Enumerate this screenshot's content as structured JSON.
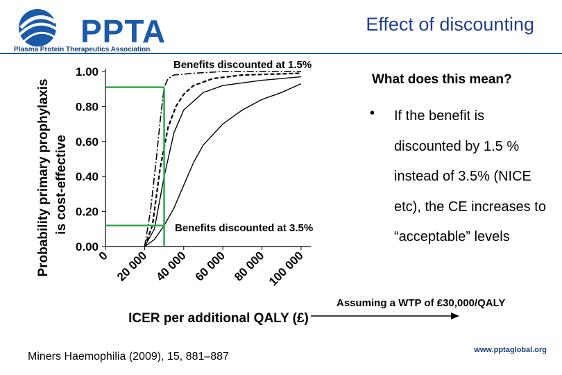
{
  "header": {
    "logo_text": "PPTA",
    "logo_subtitle": "Plasma Protein Therapeutics Association",
    "title": "Effect of discounting",
    "brand_color": "#1a5aa8"
  },
  "chart_data": {
    "type": "line",
    "ylabel_line1": "Probability primary prophylaxis",
    "ylabel_line2": "is cost-effective",
    "xlabel": "ICER per additional QALY (£)",
    "yticks": [
      "1.00",
      "0.80",
      "0.60",
      "0.40",
      "0.20",
      "0.00"
    ],
    "ytick_values": [
      1.0,
      0.8,
      0.6,
      0.4,
      0.2,
      0.0
    ],
    "xticks": [
      "0",
      "20 000",
      "40 000",
      "60 000",
      "80 000",
      "100 000"
    ],
    "xtick_values": [
      0,
      20000,
      40000,
      60000,
      80000,
      100000
    ],
    "xlim": [
      0,
      105000
    ],
    "ylim": [
      0,
      1
    ],
    "annotations": {
      "top": "Benefits discounted  at 1.5%",
      "bottom": "Benefits discounted  at 3.5%"
    },
    "highlight_color": "#2ea84a",
    "highlights": [
      {
        "x": 30000,
        "y": 0.91
      },
      {
        "x": 30000,
        "y": 0.12
      }
    ],
    "series": [
      {
        "style": "dashdot",
        "x": [
          20000,
          23000,
          26000,
          28000,
          30000,
          32000,
          35000,
          45000,
          60000,
          80000,
          100000
        ],
        "y": [
          0.0,
          0.2,
          0.5,
          0.72,
          0.91,
          0.96,
          0.98,
          0.99,
          1.0,
          1.0,
          1.0
        ]
      },
      {
        "style": "dashed",
        "x": [
          20000,
          24000,
          28000,
          32000,
          36000,
          40000,
          45000,
          55000,
          70000,
          100000
        ],
        "y": [
          0.0,
          0.12,
          0.45,
          0.68,
          0.8,
          0.87,
          0.92,
          0.96,
          0.98,
          0.99
        ]
      },
      {
        "style": "solid-a",
        "x": [
          20000,
          25000,
          30000,
          35000,
          40000,
          50000,
          60000,
          80000,
          100000
        ],
        "y": [
          0.0,
          0.1,
          0.4,
          0.65,
          0.78,
          0.88,
          0.92,
          0.95,
          0.97
        ]
      },
      {
        "style": "solid-b",
        "x": [
          20000,
          25000,
          30000,
          35000,
          40000,
          45000,
          50000,
          60000,
          70000,
          80000,
          90000,
          100000
        ],
        "y": [
          0.0,
          0.04,
          0.12,
          0.22,
          0.35,
          0.48,
          0.58,
          0.7,
          0.78,
          0.84,
          0.88,
          0.93
        ]
      }
    ]
  },
  "content": {
    "question": "What does this mean?",
    "bullet_symbol": "•",
    "bullet_text": "If the benefit is discounted by 1.5 % instead of 3.5% (NICE etc), the CE increases to “acceptable” levels",
    "wtp": "Assuming a WTP of ₤30,000/QALY"
  },
  "footer": {
    "reference": "Miners Haemophilia (2009), 15, 881–887",
    "url": "www.pptaglobal.org"
  }
}
